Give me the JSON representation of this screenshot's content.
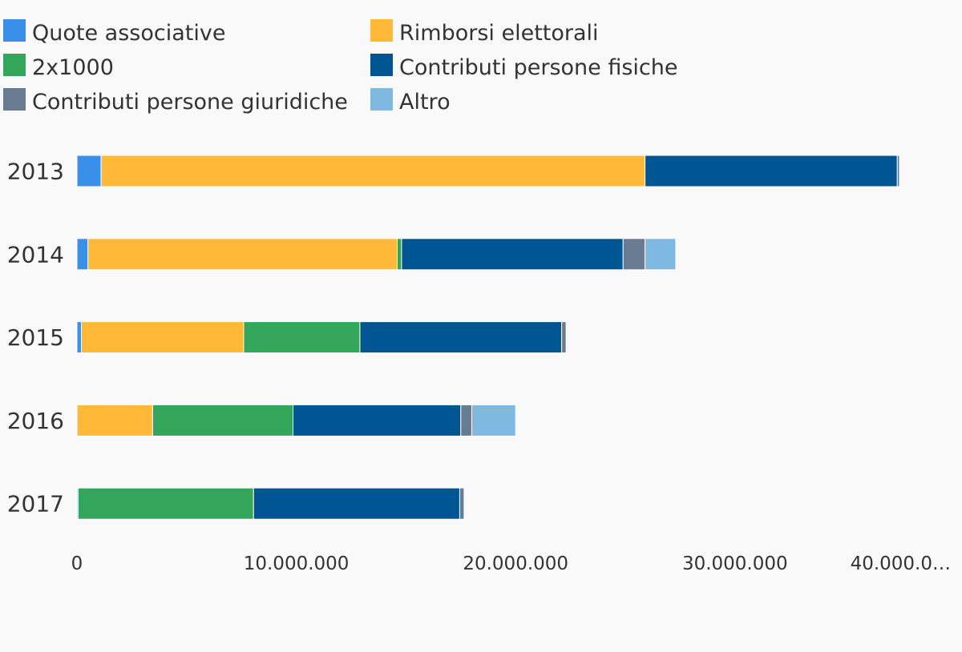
{
  "chart_data": {
    "type": "bar",
    "orientation": "horizontal",
    "stacked": true,
    "categories": [
      "2013",
      "2014",
      "2015",
      "2016",
      "2017"
    ],
    "series": [
      {
        "name": "Quote associative",
        "color": "#3a8fe8",
        "values": [
          1100000,
          500000,
          200000,
          0,
          50000
        ]
      },
      {
        "name": "Rimborsi elettorali",
        "color": "#ffb838",
        "values": [
          24800000,
          14100000,
          7400000,
          3450000,
          0
        ]
      },
      {
        "name": "2x1000",
        "color": "#33a65b",
        "values": [
          0,
          200000,
          5300000,
          6400000,
          8000000
        ]
      },
      {
        "name": "Contributi persone fisiche",
        "color": "#005593",
        "values": [
          11500000,
          10100000,
          9200000,
          7650000,
          9400000
        ]
      },
      {
        "name": "Contributi persone giuridiche",
        "color": "#697a93",
        "values": [
          100000,
          1000000,
          200000,
          500000,
          200000
        ]
      },
      {
        "name": "Altro",
        "color": "#7fb8e0",
        "values": [
          0,
          1400000,
          0,
          2000000,
          0
        ]
      }
    ],
    "xlim": [
      0,
      40000000
    ],
    "xticks": [
      0,
      10000000,
      20000000,
      30000000,
      40000000
    ],
    "xtick_labels": [
      "0",
      "10.000.000",
      "20.000.000",
      "30.000.000",
      "40.000.0…"
    ],
    "grid": false,
    "legend_position": "top-left"
  }
}
